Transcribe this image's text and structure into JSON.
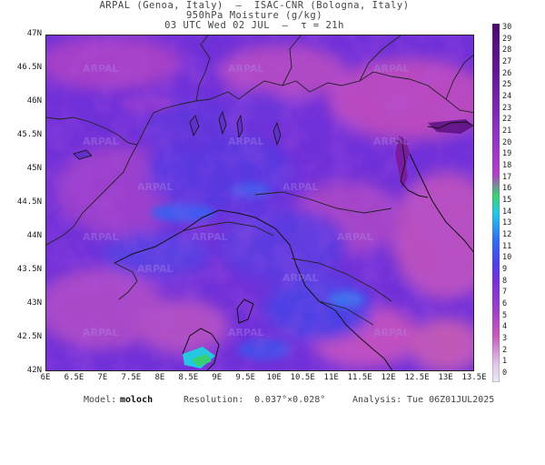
{
  "header": {
    "line1": "ARPAL (Genoa, Italy)  —  ISAC-CNR (Bologna, Italy)",
    "line2": "950hPa Moisture (g/kg)",
    "line3": "03 UTC Wed 02 JUL  —  τ = 21h"
  },
  "map": {
    "watermark": "ARPAL",
    "lat_labels": [
      "47N",
      "46.5N",
      "46N",
      "45.5N",
      "45N",
      "44.5N",
      "44N",
      "43.5N",
      "43N",
      "42.5N",
      "42N"
    ],
    "lon_labels": [
      "6E",
      "6.5E",
      "7E",
      "7.5E",
      "8E",
      "8.5E",
      "9E",
      "9.5E",
      "10E",
      "10.5E",
      "11E",
      "11.5E",
      "12E",
      "12.5E",
      "13E",
      "13.5E"
    ],
    "lat_range": [
      42,
      47
    ],
    "lon_range": [
      6,
      13.5
    ]
  },
  "colorbar": {
    "min": 0,
    "max": 30,
    "labels": [
      "30",
      "29",
      "28",
      "27",
      "26",
      "25",
      "24",
      "23",
      "22",
      "21",
      "20",
      "19",
      "18",
      "17",
      "16",
      "15",
      "14",
      "13",
      "12",
      "11",
      "10",
      "9",
      "8",
      "7",
      "6",
      "5",
      "4",
      "3",
      "2",
      "1",
      "0"
    ],
    "colors": {
      "low": "#e8e0ee",
      "mid_low": "#c040b0",
      "mid": "#7a2fd8",
      "cyan": "#22c8e8",
      "green": "#40d070",
      "high": "#5a1080"
    }
  },
  "footer": {
    "model_label": "Model:",
    "model_value": "moloch",
    "resolution_label": "Resolution:",
    "resolution_value": "0.037°×0.028°",
    "analysis_label": "Analysis:",
    "analysis_value": "Tue 06Z01JUL2025"
  }
}
